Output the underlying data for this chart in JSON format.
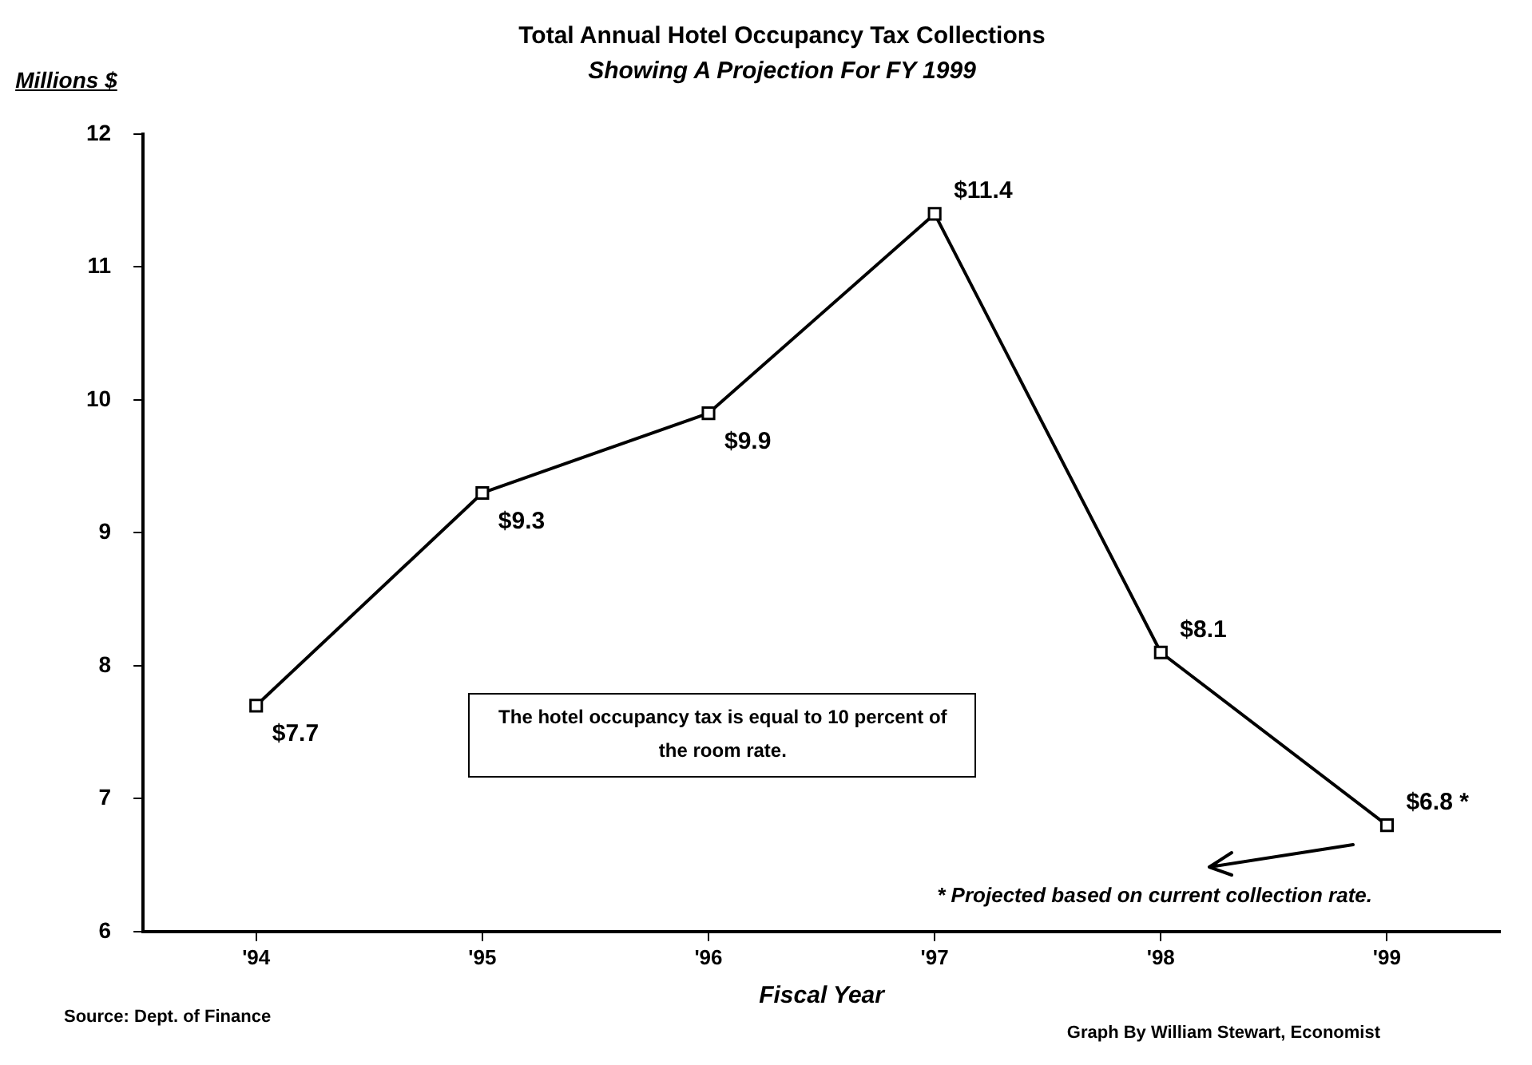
{
  "chart_data": {
    "type": "line",
    "title": "Total Annual Hotel Occupancy Tax Collections",
    "subtitle": "Showing A Projection For FY 1999",
    "ylabel": "Millions $",
    "xlabel": "Fiscal Year",
    "categories": [
      "'94",
      "'95",
      "'96",
      "'97",
      "'98",
      "'99"
    ],
    "series": [
      {
        "color": "#000000",
        "values": [
          7.7,
          9.3,
          9.9,
          11.4,
          8.1,
          6.8
        ],
        "value_labels": [
          "$7.7",
          "$9.3",
          "$9.9",
          "$11.4",
          "$8.1",
          "$6.8 *"
        ]
      }
    ],
    "ylim": [
      6,
      12
    ],
    "yticks": [
      6,
      7,
      8,
      9,
      10,
      11,
      12
    ],
    "grid": false,
    "legend": false,
    "marker": "square",
    "line_style": "solid",
    "annotations": [
      "The hotel occupancy tax is equal to 10 percent of the room rate.",
      "* Projected based on current collection rate.",
      "Source: Dept. of Finance",
      "Graph By William Stewart, Economist"
    ]
  }
}
